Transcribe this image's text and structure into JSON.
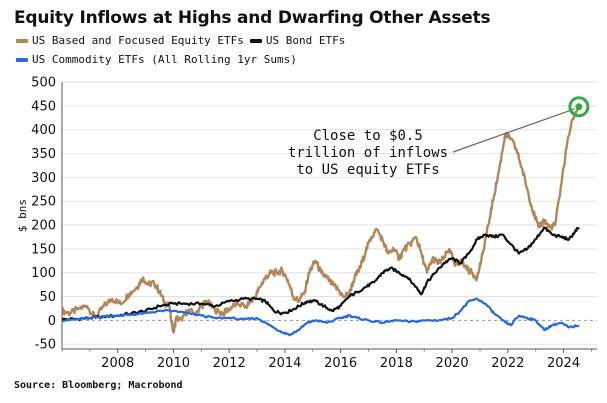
{
  "chart_data": {
    "type": "line",
    "title": "Equity Inflows at Highs and Dwarfing Other Assets",
    "ylabel": "$ bns",
    "xlim": [
      2006.0,
      2025.2
    ],
    "ylim": [
      -60,
      500
    ],
    "yticks": [
      -50,
      0,
      50,
      100,
      150,
      200,
      250,
      300,
      350,
      400,
      450,
      500
    ],
    "xticks": [
      2008,
      2010,
      2012,
      2014,
      2016,
      2018,
      2020,
      2022,
      2024
    ],
    "grid": "horizontal",
    "legend_position": "top-left",
    "series": [
      {
        "name": "US Based and Focused Equity ETFs",
        "color": "#b0875a",
        "points": [
          [
            2006.0,
            20
          ],
          [
            2006.3,
            15
          ],
          [
            2006.6,
            25
          ],
          [
            2006.9,
            30
          ],
          [
            2007.2,
            5
          ],
          [
            2007.5,
            30
          ],
          [
            2007.8,
            45
          ],
          [
            2008.1,
            35
          ],
          [
            2008.4,
            55
          ],
          [
            2008.7,
            70
          ],
          [
            2008.9,
            90
          ],
          [
            2009.1,
            75
          ],
          [
            2009.3,
            80
          ],
          [
            2009.5,
            60
          ],
          [
            2009.7,
            35
          ],
          [
            2009.85,
            30
          ],
          [
            2010.0,
            -25
          ],
          [
            2010.1,
            5
          ],
          [
            2010.3,
            0
          ],
          [
            2010.5,
            20
          ],
          [
            2010.8,
            15
          ],
          [
            2011.0,
            30
          ],
          [
            2011.2,
            40
          ],
          [
            2011.5,
            20
          ],
          [
            2011.8,
            15
          ],
          [
            2012.0,
            25
          ],
          [
            2012.3,
            35
          ],
          [
            2012.6,
            30
          ],
          [
            2012.9,
            45
          ],
          [
            2013.1,
            70
          ],
          [
            2013.3,
            90
          ],
          [
            2013.5,
            100
          ],
          [
            2013.7,
            100
          ],
          [
            2013.9,
            105
          ],
          [
            2014.1,
            85
          ],
          [
            2014.3,
            50
          ],
          [
            2014.5,
            40
          ],
          [
            2014.7,
            60
          ],
          [
            2014.9,
            105
          ],
          [
            2015.1,
            125
          ],
          [
            2015.3,
            100
          ],
          [
            2015.5,
            90
          ],
          [
            2015.7,
            75
          ],
          [
            2015.9,
            65
          ],
          [
            2016.1,
            50
          ],
          [
            2016.3,
            55
          ],
          [
            2016.5,
            90
          ],
          [
            2016.7,
            110
          ],
          [
            2016.9,
            145
          ],
          [
            2017.1,
            175
          ],
          [
            2017.3,
            190
          ],
          [
            2017.5,
            170
          ],
          [
            2017.7,
            140
          ],
          [
            2017.9,
            150
          ],
          [
            2018.1,
            130
          ],
          [
            2018.3,
            150
          ],
          [
            2018.5,
            160
          ],
          [
            2018.7,
            175
          ],
          [
            2018.9,
            140
          ],
          [
            2019.1,
            100
          ],
          [
            2019.3,
            130
          ],
          [
            2019.5,
            120
          ],
          [
            2019.7,
            130
          ],
          [
            2019.9,
            150
          ],
          [
            2020.1,
            115
          ],
          [
            2020.3,
            125
          ],
          [
            2020.5,
            110
          ],
          [
            2020.7,
            100
          ],
          [
            2020.9,
            90
          ],
          [
            2021.1,
            140
          ],
          [
            2021.3,
            200
          ],
          [
            2021.5,
            260
          ],
          [
            2021.7,
            320
          ],
          [
            2021.9,
            390
          ],
          [
            2022.1,
            380
          ],
          [
            2022.3,
            360
          ],
          [
            2022.5,
            320
          ],
          [
            2022.7,
            275
          ],
          [
            2022.9,
            230
          ],
          [
            2023.1,
            195
          ],
          [
            2023.3,
            210
          ],
          [
            2023.5,
            195
          ],
          [
            2023.7,
            200
          ],
          [
            2023.9,
            280
          ],
          [
            2024.1,
            360
          ],
          [
            2024.3,
            420
          ],
          [
            2024.55,
            448
          ]
        ]
      },
      {
        "name": "US Bond ETFs",
        "color": "#111111",
        "points": [
          [
            2006.0,
            2
          ],
          [
            2006.5,
            3
          ],
          [
            2007.0,
            5
          ],
          [
            2007.5,
            8
          ],
          [
            2008.0,
            10
          ],
          [
            2008.5,
            15
          ],
          [
            2009.0,
            20
          ],
          [
            2009.5,
            30
          ],
          [
            2010.0,
            35
          ],
          [
            2010.5,
            35
          ],
          [
            2011.0,
            35
          ],
          [
            2011.5,
            30
          ],
          [
            2012.0,
            40
          ],
          [
            2012.5,
            45
          ],
          [
            2013.0,
            45
          ],
          [
            2013.3,
            40
          ],
          [
            2013.6,
            20
          ],
          [
            2013.9,
            15
          ],
          [
            2014.2,
            20
          ],
          [
            2014.5,
            30
          ],
          [
            2014.8,
            40
          ],
          [
            2015.1,
            40
          ],
          [
            2015.4,
            30
          ],
          [
            2015.7,
            20
          ],
          [
            2016.0,
            30
          ],
          [
            2016.3,
            50
          ],
          [
            2016.6,
            60
          ],
          [
            2016.9,
            70
          ],
          [
            2017.2,
            80
          ],
          [
            2017.5,
            100
          ],
          [
            2017.8,
            110
          ],
          [
            2018.1,
            100
          ],
          [
            2018.4,
            90
          ],
          [
            2018.7,
            70
          ],
          [
            2018.9,
            55
          ],
          [
            2019.1,
            80
          ],
          [
            2019.4,
            100
          ],
          [
            2019.7,
            120
          ],
          [
            2020.0,
            130
          ],
          [
            2020.3,
            120
          ],
          [
            2020.6,
            140
          ],
          [
            2020.9,
            170
          ],
          [
            2021.2,
            180
          ],
          [
            2021.5,
            175
          ],
          [
            2021.8,
            180
          ],
          [
            2022.1,
            160
          ],
          [
            2022.4,
            140
          ],
          [
            2022.7,
            150
          ],
          [
            2023.0,
            170
          ],
          [
            2023.3,
            195
          ],
          [
            2023.6,
            180
          ],
          [
            2023.9,
            175
          ],
          [
            2024.2,
            170
          ],
          [
            2024.4,
            185
          ],
          [
            2024.55,
            195
          ]
        ]
      },
      {
        "name": "US Commodity ETFs (All Rolling 1yr Sums)",
        "color": "#2767e0",
        "points": [
          [
            2006.0,
            0
          ],
          [
            2006.5,
            2
          ],
          [
            2007.0,
            5
          ],
          [
            2007.5,
            8
          ],
          [
            2008.0,
            10
          ],
          [
            2008.5,
            12
          ],
          [
            2009.0,
            15
          ],
          [
            2009.5,
            20
          ],
          [
            2010.0,
            20
          ],
          [
            2010.5,
            15
          ],
          [
            2011.0,
            10
          ],
          [
            2011.5,
            5
          ],
          [
            2012.0,
            5
          ],
          [
            2012.5,
            2
          ],
          [
            2013.0,
            5
          ],
          [
            2013.3,
            -5
          ],
          [
            2013.6,
            -15
          ],
          [
            2013.9,
            -25
          ],
          [
            2014.2,
            -30
          ],
          [
            2014.5,
            -20
          ],
          [
            2014.8,
            -5
          ],
          [
            2015.1,
            0
          ],
          [
            2015.5,
            -5
          ],
          [
            2016.0,
            5
          ],
          [
            2016.3,
            10
          ],
          [
            2016.6,
            5
          ],
          [
            2017.0,
            0
          ],
          [
            2017.5,
            -5
          ],
          [
            2018.0,
            0
          ],
          [
            2018.5,
            -3
          ],
          [
            2019.0,
            0
          ],
          [
            2019.5,
            0
          ],
          [
            2020.0,
            5
          ],
          [
            2020.3,
            20
          ],
          [
            2020.6,
            40
          ],
          [
            2020.9,
            45
          ],
          [
            2021.2,
            35
          ],
          [
            2021.5,
            15
          ],
          [
            2021.8,
            0
          ],
          [
            2022.1,
            -10
          ],
          [
            2022.4,
            10
          ],
          [
            2022.7,
            5
          ],
          [
            2023.0,
            0
          ],
          [
            2023.3,
            -20
          ],
          [
            2023.6,
            -10
          ],
          [
            2023.9,
            -5
          ],
          [
            2024.2,
            -15
          ],
          [
            2024.55,
            -10
          ]
        ]
      }
    ],
    "annotation": {
      "lines": [
        "Close to $0.5",
        "trillion of inflows",
        "to US equity ETFs"
      ],
      "target_x": 2024.55,
      "target_y": 448
    },
    "highlight_color": "#3aa64a"
  },
  "legend": {
    "row1": [
      {
        "label": "US Based and Focused Equity ETFs",
        "color": "#b0875a"
      },
      {
        "label": "US Bond ETFs",
        "color": "#111111"
      }
    ],
    "row2": [
      {
        "label": "US Commodity ETFs (All Rolling 1yr Sums)",
        "color": "#2767e0"
      }
    ]
  },
  "source": "Source: Bloomberg; Macrobond"
}
